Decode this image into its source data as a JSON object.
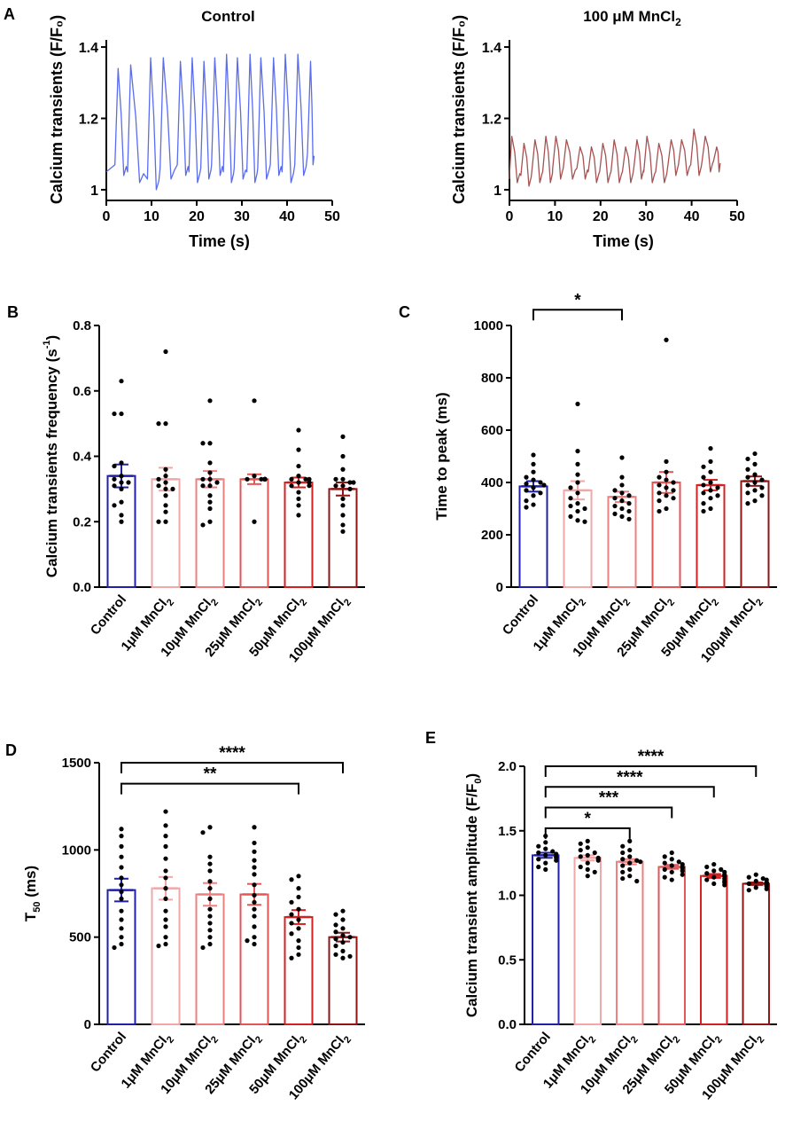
{
  "colors": {
    "control": "#1f1fa8",
    "mn1": "#f2a7a7",
    "mn10": "#ec8080",
    "mn25": "#e35656",
    "mn50": "#d42020",
    "mn100": "#8f1515",
    "traceControl": "#5a6cf0",
    "traceMn": "#a65252"
  },
  "chart_data": [
    {
      "panel": "A",
      "type": "line",
      "title": "Control",
      "xlabel": "Time (s)",
      "ylabel": "Calcium transients (F/F₀)",
      "xlim": [
        0,
        50
      ],
      "ylim": [
        0.97,
        1.42
      ],
      "xticks": [
        0,
        10,
        20,
        30,
        40,
        50
      ],
      "yticks": [
        1.0,
        1.2,
        1.4
      ],
      "trace": {
        "baseline": 1.05,
        "peak_times": [
          2.6,
          5.4,
          9.8,
          12.6,
          16.4,
          19.0,
          21.6,
          24.0,
          26.6,
          29.0,
          31.8,
          34.2,
          37.0,
          39.6,
          42.4,
          45.2
        ],
        "peak_values": [
          1.34,
          1.35,
          1.37,
          1.37,
          1.36,
          1.37,
          1.36,
          1.37,
          1.38,
          1.37,
          1.38,
          1.37,
          1.37,
          1.38,
          1.38,
          1.36
        ],
        "min_values": [
          1.04,
          1.02,
          1.0,
          1.03,
          1.04,
          1.02,
          1.03,
          1.04,
          1.02,
          1.03,
          1.02,
          1.03,
          1.04,
          1.02,
          1.04,
          1.07
        ]
      }
    },
    {
      "panel": "A2",
      "type": "line",
      "title": "100 μM MnCl",
      "title_sub": "2",
      "xlabel": "Time (s)",
      "ylabel": "Calcium transients (F/F₀)",
      "xlim": [
        0,
        50
      ],
      "ylim": [
        0.97,
        1.42
      ],
      "xticks": [
        0,
        10,
        20,
        30,
        40,
        50
      ],
      "yticks": [
        1.0,
        1.2,
        1.4
      ],
      "trace": {
        "baseline": 1.03,
        "peak_times": [
          0.5,
          3.2,
          5.6,
          8.0,
          10.2,
          12.5,
          15.5,
          18.0,
          20.5,
          23.0,
          25.5,
          28.0,
          30.2,
          32.8,
          35.5,
          37.8,
          40.5,
          43.0,
          45.5
        ],
        "peak_values": [
          1.15,
          1.13,
          1.14,
          1.15,
          1.15,
          1.14,
          1.12,
          1.12,
          1.13,
          1.14,
          1.12,
          1.14,
          1.15,
          1.13,
          1.14,
          1.14,
          1.17,
          1.15,
          1.12
        ],
        "min_values": [
          1.02,
          1.01,
          1.02,
          1.02,
          1.03,
          1.03,
          1.03,
          1.02,
          1.02,
          1.02,
          1.02,
          1.03,
          1.02,
          1.02,
          1.04,
          1.04,
          1.04,
          1.05,
          1.05
        ]
      }
    },
    {
      "panel": "B",
      "type": "bar",
      "ylabel": "Calcium transients frequency (s",
      "ylabel_sup": "-1",
      "ylabel_end": ")",
      "ylim": [
        0,
        0.8
      ],
      "yticks": [
        "0.0",
        "0.2",
        "0.4",
        "0.6",
        "0.8"
      ],
      "series": [
        {
          "name": "Control",
          "mean": 0.34,
          "sem": 0.035,
          "points": [
            0.63,
            0.53,
            0.53,
            0.38,
            0.37,
            0.34,
            0.33,
            0.32,
            0.32,
            0.31,
            0.3,
            0.26,
            0.25,
            0.22,
            0.2
          ]
        },
        {
          "name": "1μM MnCl",
          "mean": 0.33,
          "sem": 0.035,
          "points": [
            0.72,
            0.5,
            0.5,
            0.36,
            0.34,
            0.33,
            0.32,
            0.31,
            0.3,
            0.3,
            0.28,
            0.25,
            0.23,
            0.2,
            0.2
          ]
        },
        {
          "name": "10μM MnCl",
          "mean": 0.33,
          "sem": 0.025,
          "points": [
            0.57,
            0.44,
            0.44,
            0.38,
            0.35,
            0.33,
            0.33,
            0.32,
            0.31,
            0.31,
            0.28,
            0.26,
            0.24,
            0.2,
            0.19
          ]
        },
        {
          "name": "25μM MnCl",
          "mean": 0.33,
          "sem": 0.015,
          "points": [
            0.57,
            0.34,
            0.33,
            0.33,
            0.33,
            0.33,
            0.33,
            0.33,
            0.33,
            0.33,
            0.33,
            0.33,
            0.33,
            0.33,
            0.2
          ]
        },
        {
          "name": "50μM MnCl",
          "mean": 0.32,
          "sem": 0.015,
          "points": [
            0.48,
            0.42,
            0.37,
            0.34,
            0.33,
            0.33,
            0.33,
            0.32,
            0.32,
            0.31,
            0.31,
            0.29,
            0.27,
            0.25,
            0.22
          ]
        },
        {
          "name": "100μM MnCl",
          "mean": 0.3,
          "sem": 0.02,
          "points": [
            0.46,
            0.4,
            0.36,
            0.33,
            0.33,
            0.32,
            0.32,
            0.31,
            0.31,
            0.3,
            0.27,
            0.25,
            0.22,
            0.19,
            0.17
          ]
        }
      ],
      "comparisons": []
    },
    {
      "panel": "C",
      "type": "bar",
      "ylabel": "Time to peak (ms)",
      "ylim": [
        0,
        1000
      ],
      "yticks": [
        "0",
        "200",
        "400",
        "600",
        "800",
        "1000"
      ],
      "series": [
        {
          "name": "Control",
          "mean": 385,
          "sem": 20,
          "points": [
            505,
            470,
            440,
            420,
            410,
            400,
            395,
            390,
            380,
            370,
            360,
            350,
            330,
            315,
            305
          ]
        },
        {
          "name": "1μM MnCl",
          "mean": 370,
          "sem": 35,
          "points": [
            700,
            520,
            470,
            430,
            400,
            380,
            360,
            340,
            320,
            310,
            300,
            290,
            270,
            255,
            250
          ]
        },
        {
          "name": "10μM MnCl",
          "mean": 345,
          "sem": 20,
          "points": [
            495,
            420,
            390,
            370,
            360,
            350,
            340,
            330,
            320,
            310,
            300,
            290,
            280,
            270,
            260
          ]
        },
        {
          "name": "25μM MnCl",
          "mean": 400,
          "sem": 40,
          "points": [
            945,
            480,
            440,
            420,
            410,
            400,
            390,
            380,
            370,
            360,
            350,
            340,
            330,
            300,
            290
          ]
        },
        {
          "name": "50μM MnCl",
          "mean": 390,
          "sem": 20,
          "points": [
            530,
            480,
            460,
            440,
            420,
            400,
            390,
            380,
            370,
            360,
            350,
            340,
            320,
            300,
            290
          ]
        },
        {
          "name": "100μM MnCl",
          "mean": 405,
          "sem": 18,
          "points": [
            510,
            490,
            470,
            450,
            430,
            420,
            410,
            400,
            390,
            380,
            370,
            360,
            350,
            330,
            320
          ]
        }
      ],
      "comparisons": [
        {
          "from": 0,
          "to": 2,
          "label": "*",
          "y": 1060
        }
      ]
    },
    {
      "panel": "D",
      "type": "bar",
      "ylabel": "T",
      "ylabel_sub": "50",
      "ylabel_end": " (ms)",
      "ylim": [
        0,
        1500
      ],
      "yticks": [
        "0",
        "500",
        "1000",
        "1500"
      ],
      "series": [
        {
          "name": "Control",
          "mean": 770,
          "sem": 65,
          "points": [
            1120,
            1080,
            1020,
            960,
            900,
            840,
            800,
            760,
            720,
            650,
            600,
            550,
            500,
            460,
            440
          ]
        },
        {
          "name": "1μM MnCl",
          "mean": 780,
          "sem": 65,
          "points": [
            1220,
            1140,
            1080,
            1020,
            950,
            880,
            840,
            780,
            720,
            650,
            600,
            560,
            500,
            460,
            450
          ]
        },
        {
          "name": "10μM MnCl",
          "mean": 745,
          "sem": 65,
          "points": [
            1130,
            1100,
            960,
            920,
            880,
            820,
            780,
            720,
            660,
            620,
            580,
            540,
            500,
            460,
            440
          ]
        },
        {
          "name": "25μM MnCl",
          "mean": 745,
          "sem": 60,
          "points": [
            1130,
            1040,
            990,
            940,
            900,
            860,
            800,
            740,
            700,
            660,
            620,
            560,
            500,
            480,
            460
          ]
        },
        {
          "name": "50μM MnCl",
          "mean": 615,
          "sem": 40,
          "points": [
            850,
            830,
            780,
            730,
            700,
            660,
            630,
            600,
            580,
            550,
            520,
            480,
            440,
            400,
            380
          ]
        },
        {
          "name": "100μM MnCl",
          "mean": 500,
          "sem": 25,
          "points": [
            650,
            630,
            600,
            570,
            550,
            530,
            510,
            500,
            490,
            470,
            450,
            420,
            400,
            390,
            380
          ]
        }
      ],
      "comparisons": [
        {
          "from": 0,
          "to": 5,
          "label": "****",
          "y": 1500
        },
        {
          "from": 0,
          "to": 4,
          "label": "**",
          "y": 1380
        }
      ]
    },
    {
      "panel": "E",
      "type": "bar",
      "ylabel": "Calcium transient amplitude (F/F",
      "ylabel_sub": "0",
      "ylabel_end": ")",
      "ylim": [
        0,
        2.0
      ],
      "yticks": [
        "0.0",
        "0.5",
        "1.0",
        "1.5",
        "2.0"
      ],
      "series": [
        {
          "name": "Control",
          "mean": 1.31,
          "sem": 0.02,
          "points": [
            1.46,
            1.41,
            1.38,
            1.36,
            1.34,
            1.33,
            1.32,
            1.31,
            1.3,
            1.29,
            1.28,
            1.27,
            1.25,
            1.22,
            1.2
          ]
        },
        {
          "name": "1μM MnCl",
          "mean": 1.29,
          "sem": 0.02,
          "points": [
            1.42,
            1.4,
            1.37,
            1.35,
            1.33,
            1.31,
            1.3,
            1.29,
            1.28,
            1.27,
            1.25,
            1.22,
            1.2,
            1.18,
            1.15
          ]
        },
        {
          "name": "10μM MnCl",
          "mean": 1.26,
          "sem": 0.02,
          "points": [
            1.42,
            1.38,
            1.35,
            1.33,
            1.3,
            1.28,
            1.27,
            1.26,
            1.25,
            1.23,
            1.2,
            1.18,
            1.15,
            1.13,
            1.11
          ]
        },
        {
          "name": "25μM MnCl",
          "mean": 1.22,
          "sem": 0.015,
          "points": [
            1.33,
            1.3,
            1.28,
            1.26,
            1.25,
            1.24,
            1.23,
            1.22,
            1.21,
            1.2,
            1.19,
            1.18,
            1.16,
            1.14,
            1.12
          ]
        },
        {
          "name": "50μM MnCl",
          "mean": 1.15,
          "sem": 0.015,
          "points": [
            1.24,
            1.22,
            1.2,
            1.19,
            1.18,
            1.17,
            1.16,
            1.15,
            1.14,
            1.13,
            1.12,
            1.11,
            1.1,
            1.09,
            1.08
          ]
        },
        {
          "name": "100μM MnCl",
          "mean": 1.09,
          "sem": 0.01,
          "points": [
            1.16,
            1.14,
            1.13,
            1.12,
            1.11,
            1.1,
            1.1,
            1.09,
            1.09,
            1.08,
            1.08,
            1.07,
            1.06,
            1.05,
            1.04
          ]
        }
      ],
      "comparisons": [
        {
          "from": 0,
          "to": 5,
          "label": "****",
          "y": 2.0
        },
        {
          "from": 0,
          "to": 4,
          "label": "****",
          "y": 1.84
        },
        {
          "from": 0,
          "to": 3,
          "label": "***",
          "y": 1.68
        },
        {
          "from": 0,
          "to": 2,
          "label": "*",
          "y": 1.52
        }
      ]
    }
  ],
  "panel_letters": [
    "A",
    "B",
    "C",
    "D",
    "E"
  ],
  "group_subscript": "2"
}
